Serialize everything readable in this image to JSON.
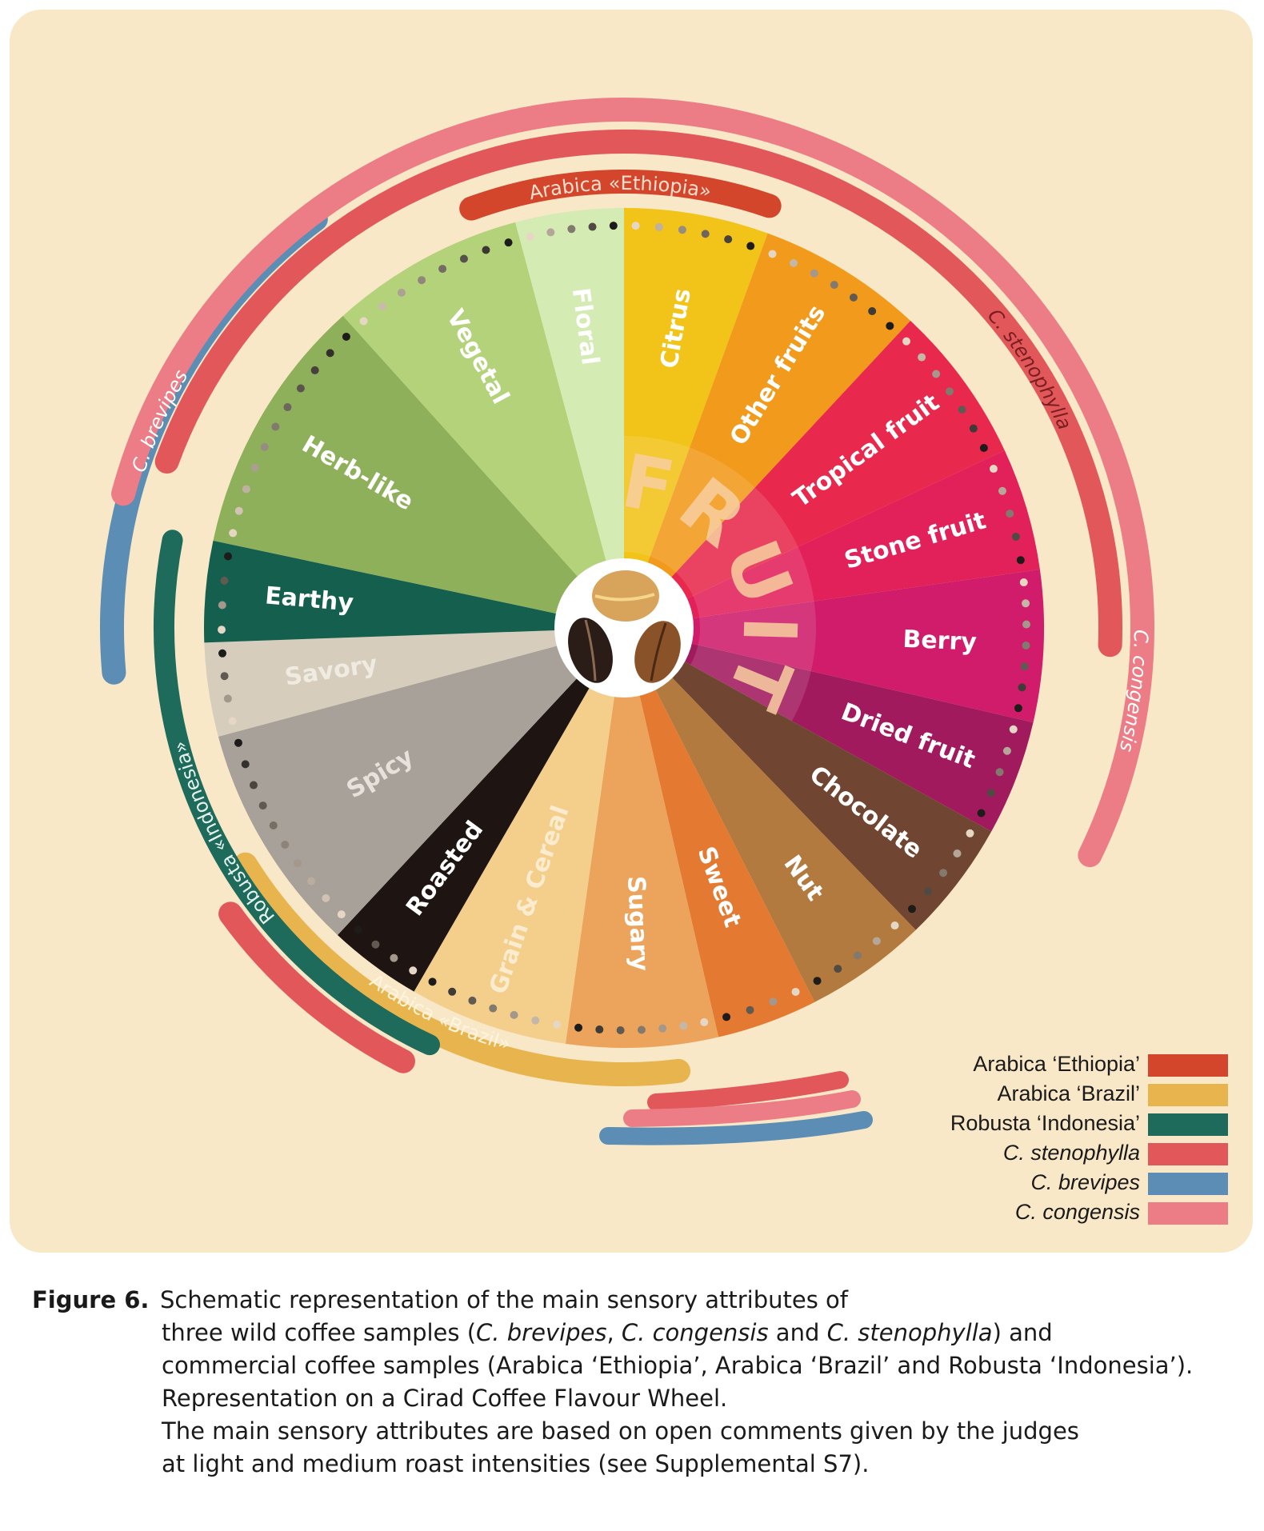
{
  "wheel": {
    "center_word": "FRUIT",
    "segments": [
      {
        "label": "Citrus",
        "color": "#f2c318",
        "text_color": "#ffffff"
      },
      {
        "label": "Other fruits",
        "color": "#f29a1b",
        "text_color": "#ffffff"
      },
      {
        "label": "Tropical fruit",
        "color": "#e8284c",
        "text_color": "#ffffff"
      },
      {
        "label": "Stone fruit",
        "color": "#e2205a",
        "text_color": "#ffffff"
      },
      {
        "label": "Berry",
        "color": "#d01c6a",
        "text_color": "#ffffff"
      },
      {
        "label": "Dried fruit",
        "color": "#a21a5e",
        "text_color": "#ffffff"
      },
      {
        "label": "Chocolate",
        "color": "#704632",
        "text_color": "#ffffff"
      },
      {
        "label": "Nut",
        "color": "#b27a3e",
        "text_color": "#ffffff"
      },
      {
        "label": "Sweet",
        "color": "#e47a31",
        "text_color": "#ffffff"
      },
      {
        "label": "Sugary",
        "color": "#eca45c",
        "text_color": "#ffffff"
      },
      {
        "label": "Grain & Cereal",
        "color": "#f4cf8c",
        "text_color": "#fbecd0"
      },
      {
        "label": "Roasted",
        "color": "#1e1412",
        "text_color": "#ffffff"
      },
      {
        "label": "Spicy",
        "color": "#a8a199",
        "text_color": "#e6e1da"
      },
      {
        "label": "Savory",
        "color": "#d6cdbc",
        "text_color": "#f0ebe1"
      },
      {
        "label": "Earthy",
        "color": "#145f4e",
        "text_color": "#ffffff"
      },
      {
        "label": "Herb-like",
        "color": "#8fb05a",
        "text_color": "#ffffff"
      },
      {
        "label": "Vegetal",
        "color": "#b3d27a",
        "text_color": "#ffffff"
      },
      {
        "label": "Floral",
        "color": "#d5ebb4",
        "text_color": "#ffffff"
      }
    ]
  },
  "bands": [
    {
      "label": "Arabica «Ethiopia»",
      "color": "#d4462b"
    },
    {
      "label": "Arabica «Brazil»",
      "color": "#e8b44e"
    },
    {
      "label": "Robusta «Indonesia»",
      "color": "#1e6b5c"
    },
    {
      "label": "C. stenophylla",
      "color": "#e2575a"
    },
    {
      "label": "C. brevipes",
      "color": "#5b8db5"
    },
    {
      "label": "C. congensis",
      "color": "#ec7d86"
    }
  ],
  "legend": {
    "items": [
      {
        "label": "Arabica ‘Ethiopia’",
        "color": "#d4462b",
        "italic": false
      },
      {
        "label": "Arabica ‘Brazil’",
        "color": "#e8b44e",
        "italic": false
      },
      {
        "label": "Robusta ‘Indonesia’",
        "color": "#1e6b5c",
        "italic": false
      },
      {
        "label": "C. stenophylla",
        "color": "#e2575a",
        "italic": true
      },
      {
        "label": "C. brevipes",
        "color": "#5b8db5",
        "italic": true
      },
      {
        "label": "C. congensis",
        "color": "#ec7d86",
        "italic": true
      }
    ]
  },
  "caption": {
    "lead": "Figure 6.",
    "line1": "Schematic representation of the main sensory attributes of",
    "line2a": "three wild coffee samples (",
    "sp1": "C. brevipes",
    "sep1": ", ",
    "sp2": "C. congensis",
    "sep2": " and ",
    "sp3": "C. stenophylla",
    "line2b": ") and",
    "line3": "commercial coffee samples (Arabica ‘Ethiopia’,  Arabica ‘Brazil’  and Robusta ‘Indonesia’).",
    "line4": "Representation on a Cirad Coffee Flavour Wheel.",
    "line5": "The main sensory attributes are based on open comments given by the judges",
    "line6": "at light and medium roast intensities (see Supplemental S7)."
  },
  "colors": {
    "panel_bg": "#f8e8c8",
    "center_ring": "#ffffff"
  }
}
